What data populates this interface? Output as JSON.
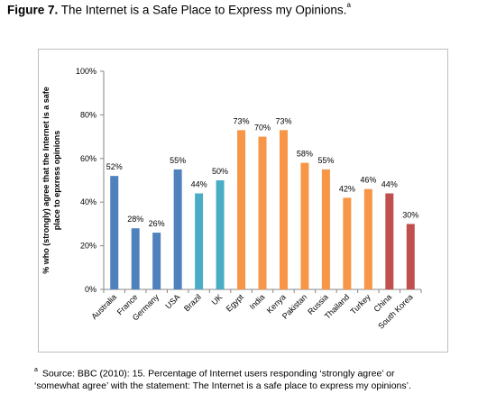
{
  "figure": {
    "label": "Figure 7.",
    "title": "The Internet is a Safe Place to Express my Opinions.",
    "title_mark": "a"
  },
  "chart_data": {
    "type": "bar",
    "categories": [
      "Australia",
      "France",
      "Germany",
      "USA",
      "Brazil",
      "UK",
      "Egypt",
      "India",
      "Kenya",
      "Pakistan",
      "Russia",
      "Thailand",
      "Turkey",
      "China",
      "South Korea"
    ],
    "values": [
      52,
      28,
      26,
      55,
      44,
      50,
      73,
      70,
      73,
      58,
      55,
      42,
      46,
      44,
      30
    ],
    "value_labels": [
      "52%",
      "28%",
      "26%",
      "55%",
      "44%",
      "50%",
      "73%",
      "70%",
      "73%",
      "58%",
      "55%",
      "42%",
      "46%",
      "44%",
      "30%"
    ],
    "bar_colors": [
      "#4f81bd",
      "#4f81bd",
      "#4f81bd",
      "#4f81bd",
      "#4bacc6",
      "#4bacc6",
      "#f79646",
      "#f79646",
      "#f79646",
      "#f79646",
      "#f79646",
      "#f79646",
      "#f79646",
      "#c0504d",
      "#c0504d"
    ],
    "ylabel_lines": [
      "% who (strongly) agree that the Internet is a safe",
      "place to epxress opinions"
    ],
    "ylim": [
      0,
      100
    ],
    "yticks": [
      0,
      20,
      40,
      60,
      80,
      100
    ],
    "ytick_labels": [
      "0%",
      "20%",
      "40%",
      "60%",
      "80%",
      "100%"
    ],
    "grid": false,
    "legend": "none"
  },
  "footnote": {
    "mark": "a",
    "line1": "Source: BBC (2010): 15. Percentage of Internet users responding ‘strongly agree’ or",
    "line2": "‘somewhat agree’ with the statement: The Internet is a safe place to express my opinions’."
  }
}
